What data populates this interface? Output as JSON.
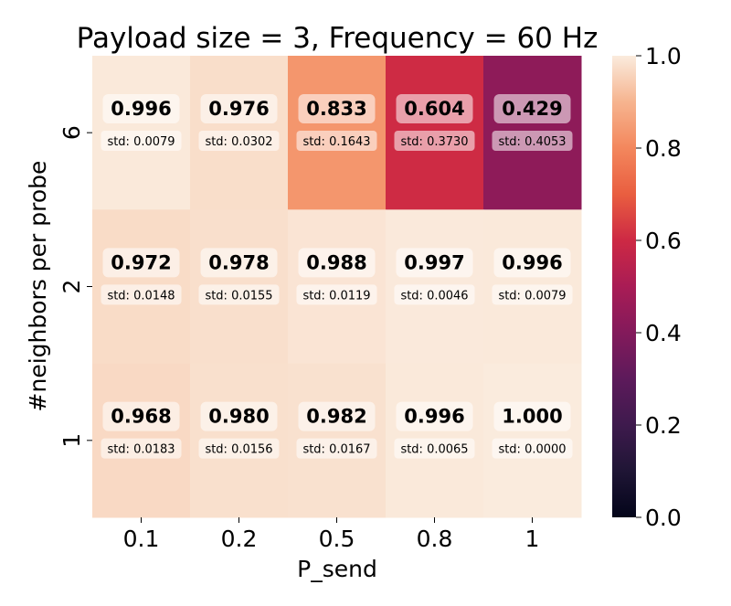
{
  "chart_data": {
    "type": "heatmap",
    "title": "Payload size = 3, Frequency = 60 Hz",
    "xlabel": "P_send",
    "ylabel": "#neighbors per probe",
    "x_categories": [
      "0.1",
      "0.2",
      "0.5",
      "0.8",
      "1"
    ],
    "y_categories": [
      "6",
      "2",
      "1"
    ],
    "values": [
      [
        0.996,
        0.976,
        0.833,
        0.604,
        0.429
      ],
      [
        0.972,
        0.978,
        0.988,
        0.997,
        0.996
      ],
      [
        0.968,
        0.98,
        0.982,
        0.996,
        1.0
      ]
    ],
    "value_labels": [
      [
        "0.996",
        "0.976",
        "0.833",
        "0.604",
        "0.429"
      ],
      [
        "0.972",
        "0.978",
        "0.988",
        "0.997",
        "0.996"
      ],
      [
        "0.968",
        "0.980",
        "0.982",
        "0.996",
        "1.000"
      ]
    ],
    "std_labels": [
      [
        "std: 0.0079",
        "std: 0.0302",
        "std: 0.1643",
        "std: 0.3730",
        "std: 0.4053"
      ],
      [
        "std: 0.0148",
        "std: 0.0155",
        "std: 0.0119",
        "std: 0.0046",
        "std: 0.0079"
      ],
      [
        "std: 0.0183",
        "std: 0.0156",
        "std: 0.0167",
        "std: 0.0065",
        "std: 0.0000"
      ]
    ],
    "colorbar": {
      "range": [
        0.0,
        1.0
      ],
      "ticks": [
        "0.0",
        "0.2",
        "0.4",
        "0.6",
        "0.8",
        "1.0"
      ],
      "colormap": "rocket"
    }
  }
}
